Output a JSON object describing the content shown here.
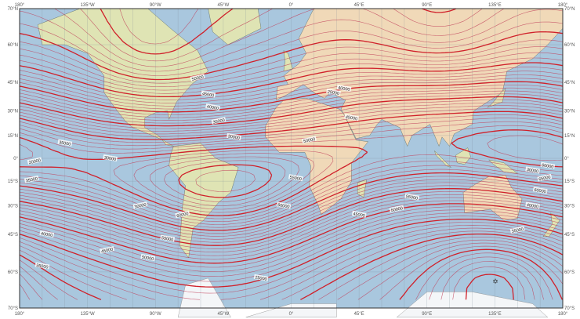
{
  "map": {
    "projection": "mercator",
    "colors": {
      "ocean": "#a9c7de",
      "land": "#dfe4b4",
      "land_warm": "#f0d9b8",
      "ice": "#f4f6f8",
      "contour": "#d0202a",
      "grid": "#7a8a96",
      "frame": "#333333"
    },
    "lat_labels": [
      "70°N",
      "60°N",
      "45°N",
      "30°N",
      "15°N",
      "0°",
      "15°S",
      "30°S",
      "45°S",
      "60°S",
      "70°S"
    ],
    "lon_labels": [
      "180°",
      "135°W",
      "90°W",
      "45°W",
      "0°",
      "45°E",
      "90°E",
      "135°E",
      "180°"
    ],
    "contour_labels": [
      "50000",
      "45000",
      "40000",
      "35000",
      "30000",
      "25000",
      "20000",
      "35000",
      "30000",
      "35000",
      "40000",
      "45000",
      "50000",
      "55000",
      "60000",
      "60000",
      "55000",
      "50000",
      "45000",
      "40000",
      "35000",
      "30000",
      "25000",
      "45000",
      "50000",
      "55000",
      "60000",
      "65000",
      "60000",
      "40000",
      "35000",
      "30000"
    ],
    "legend": "",
    "pole_marker_icon": "dip-pole-star"
  }
}
